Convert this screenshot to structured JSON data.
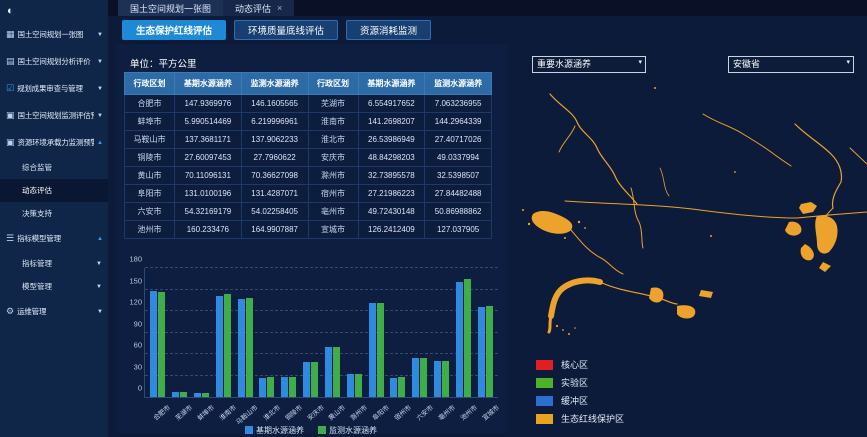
{
  "window": {
    "collapse_icon": "menu-collapse"
  },
  "sidebar": {
    "items": [
      {
        "label": "国土空间规划一张图",
        "icon": "map-icon",
        "expanded": false
      },
      {
        "label": "国土空间规划分析评价",
        "icon": "analysis-icon",
        "expanded": false
      },
      {
        "label": "规划成果审查与管理",
        "icon": "checkbox-icon",
        "expanded": false
      },
      {
        "label": "国土空间规划监测评估预警",
        "icon": "monitor-icon",
        "expanded": false
      },
      {
        "label": "资源环境承载力监测预警",
        "icon": "gauge-icon",
        "expanded": true,
        "children": [
          {
            "label": "综合监管",
            "active": false
          },
          {
            "label": "动态评估",
            "active": true
          },
          {
            "label": "决策支持",
            "active": false
          }
        ]
      },
      {
        "label": "指标模型管理",
        "icon": "list-icon",
        "expanded": true,
        "children": [
          {
            "label": "指标管理",
            "active": false,
            "arrow": "down"
          },
          {
            "label": "模型管理",
            "active": false,
            "arrow": "down"
          }
        ]
      },
      {
        "label": "运维管理",
        "icon": "gear-icon",
        "expanded": false
      }
    ]
  },
  "tabs": [
    {
      "label": "国土空间规划一张图",
      "closable": false,
      "active": false
    },
    {
      "label": "动态评估",
      "closable": true,
      "active": true,
      "close_glyph": "×"
    }
  ],
  "toolbar": {
    "buttons": [
      {
        "label": "生态保护红线评估",
        "active": true
      },
      {
        "label": "环境质量底线评估",
        "active": false
      },
      {
        "label": "资源消耗监测",
        "active": false
      }
    ]
  },
  "table": {
    "unit_label": "单位：平方公里",
    "columns": [
      "行政区划",
      "基期水源涵养",
      "监测水源涵养",
      "行政区划",
      "基期水源涵养",
      "监测水源涵养"
    ],
    "rows": [
      [
        "合肥市",
        "147.9369976",
        "146.1605565",
        "芜湖市",
        "6.554917652",
        "7.063236955"
      ],
      [
        "蚌埠市",
        "5.990514469",
        "6.219996961",
        "淮南市",
        "141.2698207",
        "144.2964339"
      ],
      [
        "马鞍山市",
        "137.3681171",
        "137.9062233",
        "淮北市",
        "26.53986949",
        "27.40717026"
      ],
      [
        "铜陵市",
        "27.60097453",
        "27.7960622",
        "安庆市",
        "48.84298203",
        "49.0337994"
      ],
      [
        "黄山市",
        "70.11096131",
        "70.36627098",
        "滁州市",
        "32.73895578",
        "32.5398507"
      ],
      [
        "阜阳市",
        "131.0100196",
        "131.4287071",
        "宿州市",
        "27.21986223",
        "27.84482488"
      ],
      [
        "六安市",
        "54.32169179",
        "54.02258405",
        "亳州市",
        "49.72430148",
        "50.86988862"
      ],
      [
        "池州市",
        "160.233476",
        "164.9907887",
        "宣城市",
        "126.2412409",
        "127.037905"
      ]
    ]
  },
  "chart_data": {
    "type": "bar",
    "title": "",
    "xlabel": "",
    "ylabel": "",
    "ylim": [
      0,
      180
    ],
    "ytick_interval": 30,
    "grid": "dashed-horizontal",
    "legend_position": "bottom",
    "categories": [
      "合肥市",
      "芜湖市",
      "蚌埠市",
      "淮南市",
      "马鞍山市",
      "淮北市",
      "铜陵市",
      "安庆市",
      "黄山市",
      "滁州市",
      "阜阳市",
      "宿州市",
      "六安市",
      "亳州市",
      "池州市",
      "宣城市"
    ],
    "series": [
      {
        "name": "基期水源涵养",
        "color": "#2f8be0",
        "values": [
          147.94,
          6.55,
          5.99,
          141.27,
          137.37,
          26.54,
          27.6,
          48.84,
          70.11,
          32.74,
          131.01,
          27.22,
          54.32,
          49.72,
          160.23,
          126.24
        ]
      },
      {
        "name": "监测水源涵养",
        "color": "#3fae49",
        "values": [
          146.16,
          7.06,
          6.22,
          144.3,
          137.91,
          27.41,
          27.8,
          49.03,
          70.37,
          32.54,
          131.43,
          27.84,
          54.02,
          50.87,
          164.99,
          127.04
        ]
      }
    ]
  },
  "map": {
    "filters": [
      {
        "value": "重要水源涵养"
      },
      {
        "value": "安徽省"
      }
    ],
    "feature_color": "#eda22b",
    "legend": [
      {
        "label": "核心区",
        "color": "#e02020"
      },
      {
        "label": "实验区",
        "color": "#4cb228"
      },
      {
        "label": "缓冲区",
        "color": "#2d6fd0"
      },
      {
        "label": "生态红线保护区",
        "color": "#e8a41f"
      }
    ]
  },
  "colors": {
    "accent": "#1e8ad6",
    "sidebar_bg": "#102648",
    "table_header_bg": "#2d6ba6",
    "page_bg": "#0c1b3a"
  }
}
